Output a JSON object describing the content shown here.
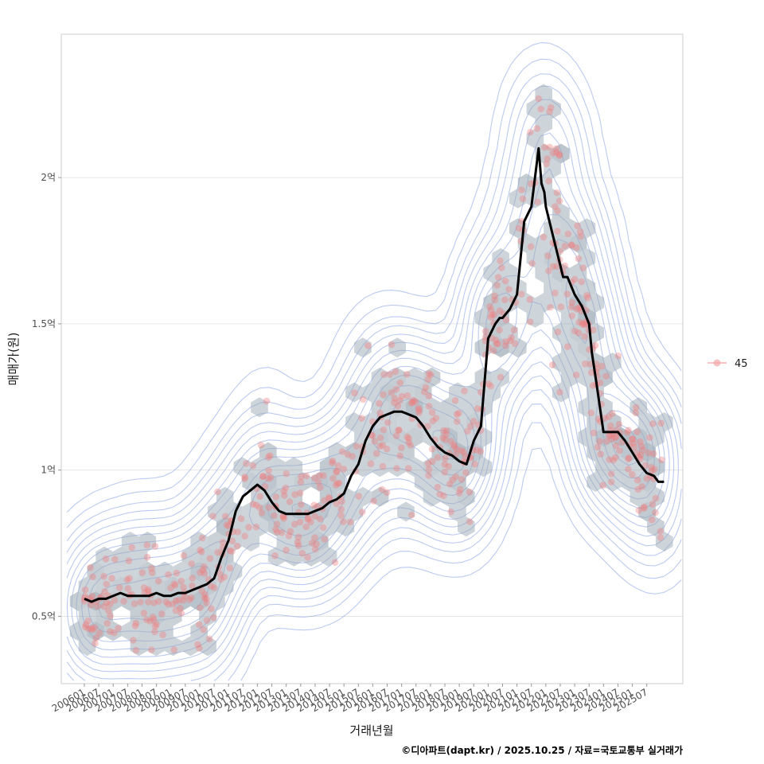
{
  "chart_data": {
    "type": "line",
    "xlabel": "거래년월",
    "ylabel": "매매가(원)",
    "caption": "©디아파트(dapt.kr) / 2025.10.25 / 자료=국토교통부 실거래가",
    "x_ticks": [
      "200601",
      "200607",
      "200701",
      "200707",
      "200801",
      "200807",
      "200901",
      "200907",
      "201001",
      "201007",
      "201101",
      "201107",
      "201201",
      "201207",
      "201301",
      "201307",
      "201401",
      "201407",
      "201501",
      "201507",
      "201601",
      "201607",
      "201701",
      "201707",
      "201801",
      "201807",
      "201901",
      "201907",
      "202001",
      "202007",
      "202101",
      "202107",
      "202201",
      "202207",
      "202301",
      "202307",
      "202401",
      "202407",
      "202501",
      "202507"
    ],
    "y_ticks": [
      {
        "value": 0.5,
        "label": "0.5억"
      },
      {
        "value": 1.0,
        "label": "1억"
      },
      {
        "value": 1.5,
        "label": "1.5억"
      },
      {
        "value": 2.0,
        "label": "2억"
      }
    ],
    "x_range": [
      2005.2,
      2026.75
    ],
    "ylim": [
      0.27,
      2.49
    ],
    "legend": {
      "label": "45",
      "position": "right"
    },
    "series": [
      {
        "name": "moving-average",
        "x": [
          2006.0,
          2006.25,
          2006.5,
          2006.75,
          2007.0,
          2007.25,
          2007.5,
          2007.75,
          2008.0,
          2008.25,
          2008.5,
          2008.75,
          2009.0,
          2009.25,
          2009.5,
          2009.75,
          2010.0,
          2010.25,
          2010.5,
          2010.75,
          2011.0,
          2011.25,
          2011.5,
          2011.75,
          2012.0,
          2012.25,
          2012.5,
          2012.75,
          2013.0,
          2013.25,
          2013.5,
          2013.75,
          2014.0,
          2014.25,
          2014.5,
          2014.75,
          2015.0,
          2015.25,
          2015.5,
          2015.75,
          2016.0,
          2016.25,
          2016.5,
          2016.75,
          2017.0,
          2017.25,
          2017.5,
          2017.75,
          2018.0,
          2018.25,
          2018.5,
          2018.75,
          2019.0,
          2019.25,
          2019.5,
          2019.75,
          2020.0,
          2020.25,
          2020.4,
          2020.5,
          2020.75,
          2021.0,
          2021.25,
          2021.5,
          2021.75,
          2021.85,
          2021.95,
          2022.0,
          2022.25,
          2022.5,
          2022.6,
          2022.75,
          2023.0,
          2023.25,
          2023.5,
          2023.6,
          2023.75,
          2024.0,
          2024.25,
          2024.5,
          2024.75,
          2025.0,
          2025.25,
          2025.5,
          2025.75,
          2025.9,
          2026.0,
          2026.1
        ],
        "values": [
          0.56,
          0.55,
          0.56,
          0.56,
          0.57,
          0.58,
          0.57,
          0.57,
          0.57,
          0.57,
          0.58,
          0.57,
          0.57,
          0.58,
          0.58,
          0.59,
          0.6,
          0.61,
          0.63,
          0.7,
          0.76,
          0.86,
          0.91,
          0.93,
          0.95,
          0.93,
          0.89,
          0.86,
          0.85,
          0.85,
          0.85,
          0.85,
          0.86,
          0.87,
          0.89,
          0.9,
          0.92,
          0.98,
          1.02,
          1.1,
          1.15,
          1.18,
          1.19,
          1.2,
          1.2,
          1.19,
          1.18,
          1.15,
          1.11,
          1.08,
          1.06,
          1.05,
          1.03,
          1.02,
          1.1,
          1.15,
          1.45,
          1.5,
          1.52,
          1.52,
          1.55,
          1.6,
          1.85,
          1.9,
          2.1,
          1.98,
          1.95,
          1.9,
          1.8,
          1.7,
          1.66,
          1.66,
          1.6,
          1.56,
          1.5,
          1.4,
          1.3,
          1.13,
          1.13,
          1.13,
          1.1,
          1.06,
          1.02,
          0.99,
          0.98,
          0.96,
          0.96,
          0.96
        ]
      }
    ]
  }
}
